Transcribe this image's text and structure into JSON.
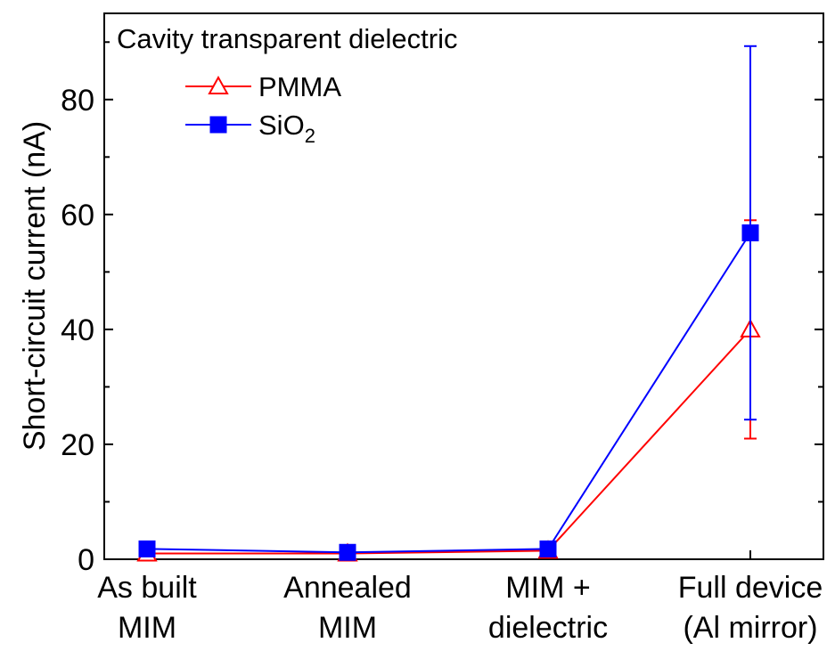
{
  "chart_data": {
    "type": "line",
    "title": "",
    "xlabel": "",
    "ylabel": "Short-circuit current (nA)",
    "categories": [
      {
        "line1": "As built",
        "line2": "MIM"
      },
      {
        "line1": "Annealed",
        "line2": "MIM"
      },
      {
        "line1": "MIM +",
        "line2": "dielectric"
      },
      {
        "line1": "Full device",
        "line2": "(Al mirror)"
      }
    ],
    "ylim": [
      0,
      95
    ],
    "yticks": [
      0,
      20,
      40,
      60,
      80
    ],
    "y_minor_step": 10,
    "grid": false,
    "legend": {
      "title": "Cavity transparent dielectric",
      "placement": "top-left"
    },
    "series": [
      {
        "name": "PMMA",
        "name_main": "PMMA",
        "name_sub": "",
        "color": "#ff0000",
        "marker": "open-triangle",
        "values": [
          1.0,
          1.0,
          1.5,
          40.0
        ],
        "error_low": [
          0.8,
          1.8,
          1.0,
          21.0
        ],
        "error_high": [
          1.2,
          1.8,
          2.0,
          59.0
        ]
      },
      {
        "name": "SiO2",
        "name_main": "SiO",
        "name_sub": "2",
        "color": "#0000ff",
        "marker": "filled-square",
        "values": [
          1.8,
          1.2,
          1.8,
          56.8
        ],
        "error_low": [
          1.4,
          0.8,
          1.3,
          24.3
        ],
        "error_high": [
          2.2,
          1.6,
          2.4,
          89.3
        ]
      }
    ]
  }
}
